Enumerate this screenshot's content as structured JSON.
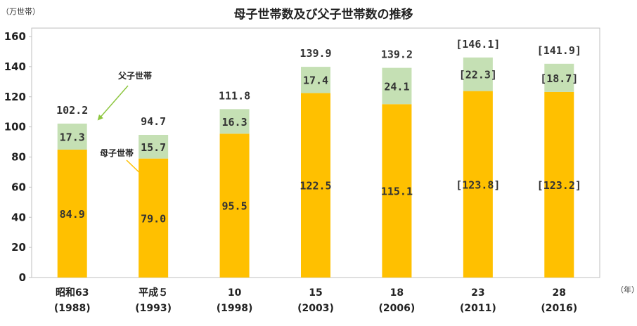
{
  "chart_data": {
    "type": "bar",
    "stacked": true,
    "title": "母子世帯数及び父子世帯数の推移",
    "ylabel": "（万世帯）",
    "xlabel": "（年）",
    "ylim": [
      0,
      160
    ],
    "yticks": [
      "0",
      "20",
      "40",
      "60",
      "80",
      "100",
      "120",
      "140",
      "160"
    ],
    "categories": [
      {
        "era": "昭和63",
        "year": "(1988)"
      },
      {
        "era": "平成５",
        "year": "(1993)"
      },
      {
        "era": "10",
        "year": "(1998)"
      },
      {
        "era": "15",
        "year": "(2003)"
      },
      {
        "era": "18",
        "year": "(2006)"
      },
      {
        "era": "23",
        "year": "(2011)"
      },
      {
        "era": "28",
        "year": "(2016)"
      }
    ],
    "series": [
      {
        "name": "母子世帯",
        "color": "#FFC000",
        "values": [
          84.9,
          79.0,
          95.5,
          122.5,
          115.1,
          123.8,
          123.2
        ],
        "labels": [
          "84.9",
          "79.0",
          "95.5",
          "122.5",
          "115.1",
          "[123.8]",
          "[123.2]"
        ]
      },
      {
        "name": "父子世帯",
        "color": "#C5E0B4",
        "values": [
          17.3,
          15.7,
          16.3,
          17.4,
          24.1,
          22.3,
          18.7
        ],
        "labels": [
          "17.3",
          "15.7",
          "16.3",
          "17.4",
          "24.1",
          "[22.3]",
          "[18.7]"
        ]
      }
    ],
    "totals": [
      "102.2",
      "94.7",
      "111.8",
      "139.9",
      "139.2",
      "[146.1]",
      "[141.9]"
    ],
    "annotations": [
      {
        "text": "父子世帯",
        "target": "father-series"
      },
      {
        "text": "母子世帯",
        "target": "mother-series"
      }
    ],
    "grid": false,
    "legend": "none"
  }
}
